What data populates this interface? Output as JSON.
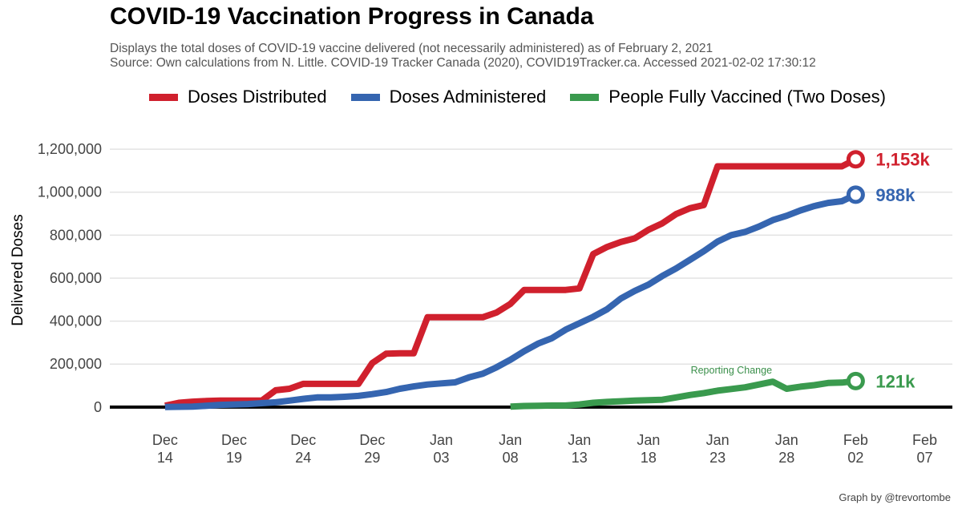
{
  "header": {
    "title": "COVID-19 Vaccination Progress in Canada",
    "subtitle": "Displays the total doses of COVID-19 vaccine delivered (not necessarily administered) as of February 2, 2021",
    "source": "Source: Own calculations from N. Little. COVID-19 Tracker Canada (2020), COVID19Tracker.ca. Accessed  2021-02-02 17:30:12"
  },
  "credit": "Graph by @trevortombe",
  "chart_data": {
    "type": "line",
    "title": "COVID-19 Vaccination Progress in Canada",
    "ylabel": "Delivered Doses",
    "xlabel": "",
    "xlim": [
      "2020-12-10",
      "2021-02-09"
    ],
    "ylim": [
      -120000,
      1260000
    ],
    "x_ticks": [
      {
        "date": "2020-12-14",
        "label": [
          "Dec",
          "14"
        ]
      },
      {
        "date": "2020-12-19",
        "label": [
          "Dec",
          "19"
        ]
      },
      {
        "date": "2020-12-24",
        "label": [
          "Dec",
          "24"
        ]
      },
      {
        "date": "2020-12-29",
        "label": [
          "Dec",
          "29"
        ]
      },
      {
        "date": "2021-01-03",
        "label": [
          "Jan",
          "03"
        ]
      },
      {
        "date": "2021-01-08",
        "label": [
          "Jan",
          "08"
        ]
      },
      {
        "date": "2021-01-13",
        "label": [
          "Jan",
          "13"
        ]
      },
      {
        "date": "2021-01-18",
        "label": [
          "Jan",
          "18"
        ]
      },
      {
        "date": "2021-01-23",
        "label": [
          "Jan",
          "23"
        ]
      },
      {
        "date": "2021-01-28",
        "label": [
          "Jan",
          "28"
        ]
      },
      {
        "date": "2021-02-02",
        "label": [
          "Feb",
          "02"
        ]
      },
      {
        "date": "2021-02-07",
        "label": [
          "Feb",
          "07"
        ]
      }
    ],
    "y_ticks": [
      {
        "value": 0,
        "label": "0"
      },
      {
        "value": 200000,
        "label": "200,000"
      },
      {
        "value": 400000,
        "label": "400,000"
      },
      {
        "value": 600000,
        "label": "600,000"
      },
      {
        "value": 800000,
        "label": "800,000"
      },
      {
        "value": 1000000,
        "label": "1,000,000"
      },
      {
        "value": 1200000,
        "label": "1,200,000"
      }
    ],
    "grid": true,
    "legend_position": "top",
    "annotation": {
      "text": "Reporting Change",
      "date": "2021-01-24",
      "value": 170000
    },
    "series": [
      {
        "name": "Doses Distributed",
        "color": "#d0202d",
        "end_label": "1,153k",
        "points": [
          [
            "2020-12-14",
            6000
          ],
          [
            "2020-12-15",
            20000
          ],
          [
            "2020-12-16",
            25000
          ],
          [
            "2020-12-17",
            28000
          ],
          [
            "2020-12-18",
            30000
          ],
          [
            "2020-12-19",
            30000
          ],
          [
            "2020-12-20",
            30000
          ],
          [
            "2020-12-21",
            30000
          ],
          [
            "2020-12-22",
            78000
          ],
          [
            "2020-12-23",
            85000
          ],
          [
            "2020-12-24",
            108000
          ],
          [
            "2020-12-25",
            108000
          ],
          [
            "2020-12-26",
            108000
          ],
          [
            "2020-12-27",
            108000
          ],
          [
            "2020-12-28",
            108000
          ],
          [
            "2020-12-29",
            205000
          ],
          [
            "2020-12-30",
            248000
          ],
          [
            "2020-12-31",
            250000
          ],
          [
            "2021-01-01",
            250000
          ],
          [
            "2021-01-02",
            418000
          ],
          [
            "2021-01-03",
            418000
          ],
          [
            "2021-01-04",
            418000
          ],
          [
            "2021-01-05",
            418000
          ],
          [
            "2021-01-06",
            418000
          ],
          [
            "2021-01-07",
            440000
          ],
          [
            "2021-01-08",
            480000
          ],
          [
            "2021-01-09",
            545000
          ],
          [
            "2021-01-10",
            545000
          ],
          [
            "2021-01-11",
            545000
          ],
          [
            "2021-01-12",
            545000
          ],
          [
            "2021-01-13",
            552000
          ],
          [
            "2021-01-14",
            712000
          ],
          [
            "2021-01-15",
            745000
          ],
          [
            "2021-01-16",
            768000
          ],
          [
            "2021-01-17",
            785000
          ],
          [
            "2021-01-18",
            825000
          ],
          [
            "2021-01-19",
            855000
          ],
          [
            "2021-01-20",
            898000
          ],
          [
            "2021-01-21",
            925000
          ],
          [
            "2021-01-22",
            940000
          ],
          [
            "2021-01-23",
            1120000
          ],
          [
            "2021-01-24",
            1120000
          ],
          [
            "2021-01-25",
            1120000
          ],
          [
            "2021-01-26",
            1120000
          ],
          [
            "2021-01-27",
            1120000
          ],
          [
            "2021-01-28",
            1120000
          ],
          [
            "2021-01-29",
            1120000
          ],
          [
            "2021-01-30",
            1120000
          ],
          [
            "2021-01-31",
            1120000
          ],
          [
            "2021-02-01",
            1120000
          ],
          [
            "2021-02-02",
            1153000
          ]
        ]
      },
      {
        "name": "Doses Administered",
        "color": "#3565b0",
        "end_label": "988k",
        "points": [
          [
            "2020-12-14",
            0
          ],
          [
            "2020-12-16",
            2000
          ],
          [
            "2020-12-18",
            10000
          ],
          [
            "2020-12-20",
            14000
          ],
          [
            "2020-12-22",
            22000
          ],
          [
            "2020-12-23",
            30000
          ],
          [
            "2020-12-24",
            38000
          ],
          [
            "2020-12-25",
            45000
          ],
          [
            "2020-12-26",
            45000
          ],
          [
            "2020-12-27",
            48000
          ],
          [
            "2020-12-28",
            52000
          ],
          [
            "2020-12-29",
            60000
          ],
          [
            "2020-12-30",
            70000
          ],
          [
            "2020-12-31",
            85000
          ],
          [
            "2021-01-01",
            96000
          ],
          [
            "2021-01-02",
            105000
          ],
          [
            "2021-01-03",
            110000
          ],
          [
            "2021-01-04",
            115000
          ],
          [
            "2021-01-05",
            138000
          ],
          [
            "2021-01-06",
            155000
          ],
          [
            "2021-01-07",
            185000
          ],
          [
            "2021-01-08",
            220000
          ],
          [
            "2021-01-09",
            260000
          ],
          [
            "2021-01-10",
            295000
          ],
          [
            "2021-01-11",
            320000
          ],
          [
            "2021-01-12",
            360000
          ],
          [
            "2021-01-13",
            390000
          ],
          [
            "2021-01-14",
            420000
          ],
          [
            "2021-01-15",
            455000
          ],
          [
            "2021-01-16",
            505000
          ],
          [
            "2021-01-17",
            540000
          ],
          [
            "2021-01-18",
            570000
          ],
          [
            "2021-01-19",
            610000
          ],
          [
            "2021-01-20",
            645000
          ],
          [
            "2021-01-21",
            685000
          ],
          [
            "2021-01-22",
            725000
          ],
          [
            "2021-01-23",
            770000
          ],
          [
            "2021-01-24",
            800000
          ],
          [
            "2021-01-25",
            815000
          ],
          [
            "2021-01-26",
            840000
          ],
          [
            "2021-01-27",
            870000
          ],
          [
            "2021-01-28",
            890000
          ],
          [
            "2021-01-29",
            915000
          ],
          [
            "2021-01-30",
            935000
          ],
          [
            "2021-01-31",
            950000
          ],
          [
            "2021-02-01",
            958000
          ],
          [
            "2021-02-02",
            988000
          ]
        ]
      },
      {
        "name": "People Fully Vaccined (Two Doses)",
        "color": "#3a9a4e",
        "end_label": "121k",
        "points": [
          [
            "2021-01-08",
            2000
          ],
          [
            "2021-01-09",
            5000
          ],
          [
            "2021-01-10",
            6000
          ],
          [
            "2021-01-11",
            7000
          ],
          [
            "2021-01-12",
            7000
          ],
          [
            "2021-01-13",
            12000
          ],
          [
            "2021-01-14",
            20000
          ],
          [
            "2021-01-15",
            24000
          ],
          [
            "2021-01-16",
            27000
          ],
          [
            "2021-01-17",
            30000
          ],
          [
            "2021-01-18",
            32000
          ],
          [
            "2021-01-19",
            34000
          ],
          [
            "2021-01-20",
            45000
          ],
          [
            "2021-01-21",
            56000
          ],
          [
            "2021-01-22",
            65000
          ],
          [
            "2021-01-23",
            76000
          ],
          [
            "2021-01-24",
            84000
          ],
          [
            "2021-01-25",
            92000
          ],
          [
            "2021-01-26",
            105000
          ],
          [
            "2021-01-27",
            118000
          ],
          [
            "2021-01-28",
            85000
          ],
          [
            "2021-01-29",
            95000
          ],
          [
            "2021-01-30",
            102000
          ],
          [
            "2021-01-31",
            112000
          ],
          [
            "2021-02-01",
            114000
          ],
          [
            "2021-02-02",
            121000
          ]
        ]
      }
    ]
  }
}
